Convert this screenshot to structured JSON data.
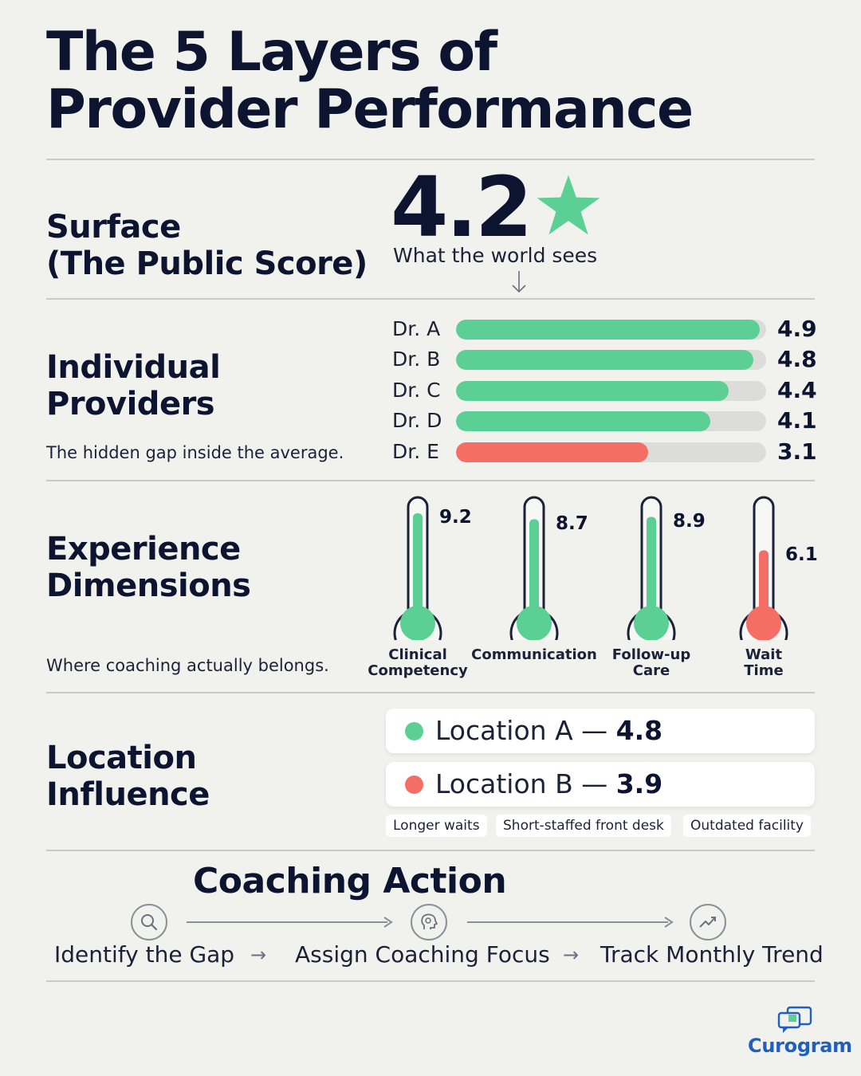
{
  "title": {
    "line1": "The 5 Layers of",
    "line2": "Provider Performance"
  },
  "surface": {
    "heading_line1": "Surface",
    "heading_line2": "(The Public Score)",
    "score": "4.2",
    "caption": "What the world sees",
    "star_color": "#5ccf95"
  },
  "providers": {
    "heading_line1": "Individual",
    "heading_line2": "Providers",
    "subtitle": "The hidden gap inside the average."
  },
  "dimensions": {
    "heading_line1": "Experience",
    "heading_line2": "Dimensions",
    "subtitle": "Where coaching actually belongs."
  },
  "locations": {
    "heading_line1": "Location",
    "heading_line2": "Influence",
    "items": [
      {
        "name": "Location A",
        "dash": "—",
        "value": "4.8",
        "color": "#5ccf95"
      },
      {
        "name": "Location B",
        "dash": "—",
        "value": "3.9",
        "color": "#f56e66"
      }
    ],
    "tags": [
      "Longer waits",
      "Short-staffed front desk",
      "Outdated facility"
    ]
  },
  "coaching": {
    "title": "Coaching Action",
    "steps": [
      "Identify the Gap",
      "Assign Coaching Focus",
      "Track Monthly Trend"
    ],
    "arrow": "→",
    "icons": [
      "search-icon",
      "head-icon",
      "trend-up-icon"
    ]
  },
  "brand": {
    "name": "Curogram",
    "color": "#1f5fbf"
  },
  "colors": {
    "good": "#5ccf95",
    "bad": "#f56e66",
    "track": "#dcdcda",
    "ink": "#0c1430"
  },
  "chart_data": [
    {
      "type": "bar",
      "orientation": "horizontal",
      "categories": [
        "Dr. A",
        "Dr. B",
        "Dr. C",
        "Dr. D",
        "Dr. E"
      ],
      "values": [
        4.9,
        4.8,
        4.4,
        4.1,
        3.1
      ],
      "value_labels": [
        "4.9",
        "4.8",
        "4.4",
        "4.1",
        "3.1"
      ],
      "colors": [
        "#5ccf95",
        "#5ccf95",
        "#5ccf95",
        "#5ccf95",
        "#f56e66"
      ],
      "xlim": [
        0,
        5
      ]
    },
    {
      "type": "bar",
      "style": "thermometer",
      "categories": [
        [
          "Clinical",
          "Competency"
        ],
        [
          "Communication"
        ],
        [
          "Follow-up",
          "Care"
        ],
        [
          "Wait",
          "Time"
        ]
      ],
      "values": [
        9.2,
        8.7,
        8.9,
        6.1
      ],
      "value_labels": [
        "9.2",
        "8.7",
        "8.9",
        "6.1"
      ],
      "colors": [
        "#5ccf95",
        "#5ccf95",
        "#5ccf95",
        "#f56e66"
      ],
      "ylim": [
        0,
        10
      ]
    }
  ]
}
